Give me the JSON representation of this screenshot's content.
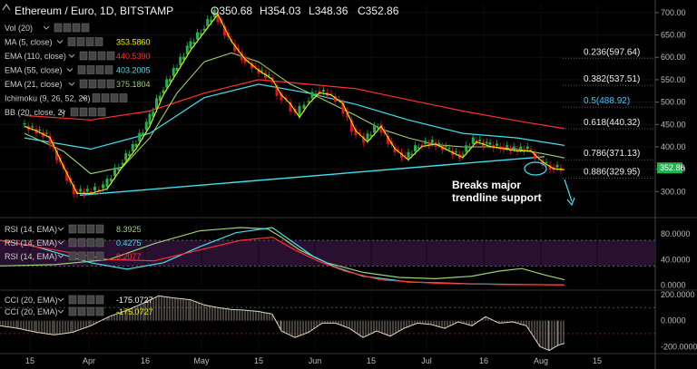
{
  "header": {
    "title": "Ethereum / Euro, 1D, BITSTAMP",
    "o_label": "O",
    "o": "350.68",
    "h_label": "H",
    "h": "354.03",
    "l_label": "L",
    "l": "348.36",
    "c_label": "C",
    "c": "352.86"
  },
  "legend": [
    {
      "label": "Vol (20)",
      "value": "",
      "color": "#cccccc"
    },
    {
      "label": "MA (5, close)",
      "value": "353.5860",
      "color": "#f0f000"
    },
    {
      "label": "EMA (110, close)",
      "value": "440.5390",
      "color": "#ff3030"
    },
    {
      "label": "EMA (55, close)",
      "value": "403.2005",
      "color": "#40e0f0"
    },
    {
      "label": "EMA (21, close)",
      "value": "375.1804",
      "color": "#9cd070"
    },
    {
      "label": "Ichimoku (9, 26, 52, 26)",
      "value": "",
      "color": "#cccccc"
    },
    {
      "label": "BB (20, close, 2)",
      "value": "",
      "color": "#cccccc"
    }
  ],
  "fib_levels": [
    {
      "label": "0.236(597.64)",
      "value": 597.64,
      "color": "#eeeeee"
    },
    {
      "label": "0.382(537.51)",
      "value": 537.51,
      "color": "#eeeeee"
    },
    {
      "label": "0.5(488.92)",
      "value": 488.92,
      "color": "#40c8ff"
    },
    {
      "label": "0.618(440.32)",
      "value": 440.32,
      "color": "#eeeeee"
    },
    {
      "label": "0.786(371.13)",
      "value": 371.13,
      "color": "#eeeeee"
    },
    {
      "label": "0.886(329.95)",
      "value": 329.95,
      "color": "#eeeeee"
    }
  ],
  "annotation": {
    "line1": "Breaks major",
    "line2": "trendline support"
  },
  "price_tag": {
    "value": "352.86",
    "num": 352.86,
    "color": "#22b24c"
  },
  "rsi_legend": [
    {
      "label": "RSI (14, EMA)",
      "value": "8.3925",
      "color": "#9cd070"
    },
    {
      "label": "RSI (14, EMA)",
      "value": "0.4275",
      "color": "#40e0f0"
    },
    {
      "label": "RSI (14, EMA)",
      "value": "0.2077",
      "color": "#ff3030"
    }
  ],
  "cci_legend": [
    {
      "label": "CCI (20, EMA)",
      "value": "-175.0727",
      "color": "#ffffff"
    },
    {
      "label": "CCI (20, EMA)",
      "value": "-175.0727",
      "color": "#f0f000"
    }
  ],
  "colors": {
    "up": "#22b24c",
    "down": "#e0141e",
    "trend": "#40e0f0"
  },
  "chart_data": {
    "type": "line",
    "title": "Ethereum / Euro, 1D, BITSTAMP",
    "price_axis": {
      "min": 250,
      "max": 720,
      "ticks": [
        300,
        350,
        400,
        450,
        500,
        550,
        600,
        650,
        700
      ]
    },
    "price_tick_labels": [
      "300.00",
      "350.00",
      "400.00",
      "450.00",
      "500.00",
      "550.00",
      "600.00",
      "650.00",
      "700.00"
    ],
    "x_tick_labels": [
      "15",
      "Apr",
      "16",
      "May",
      "15",
      "Jun",
      "15",
      "Jul",
      "16",
      "Aug",
      "15"
    ],
    "x_ticks": [
      33,
      98,
      160,
      222,
      285,
      347,
      409,
      470,
      533,
      596,
      658
    ],
    "price_path": [
      [
        27,
        450
      ],
      [
        40,
        440
      ],
      [
        55,
        425
      ],
      [
        70,
        360
      ],
      [
        85,
        300
      ],
      [
        100,
        300
      ],
      [
        118,
        310
      ],
      [
        135,
        360
      ],
      [
        150,
        400
      ],
      [
        165,
        450
      ],
      [
        180,
        520
      ],
      [
        195,
        570
      ],
      [
        210,
        620
      ],
      [
        225,
        660
      ],
      [
        240,
        700
      ],
      [
        255,
        640
      ],
      [
        270,
        600
      ],
      [
        285,
        575
      ],
      [
        300,
        555
      ],
      [
        310,
        520
      ],
      [
        320,
        500
      ],
      [
        330,
        470
      ],
      [
        340,
        500
      ],
      [
        352,
        525
      ],
      [
        365,
        520
      ],
      [
        378,
        500
      ],
      [
        392,
        440
      ],
      [
        405,
        415
      ],
      [
        420,
        450
      ],
      [
        435,
        400
      ],
      [
        450,
        375
      ],
      [
        465,
        405
      ],
      [
        480,
        410
      ],
      [
        495,
        395
      ],
      [
        510,
        380
      ],
      [
        525,
        415
      ],
      [
        540,
        405
      ],
      [
        555,
        400
      ],
      [
        570,
        395
      ],
      [
        585,
        395
      ],
      [
        598,
        370
      ],
      [
        610,
        355
      ],
      [
        622,
        352.86
      ]
    ],
    "ema21": [
      [
        27,
        430
      ],
      [
        70,
        390
      ],
      [
        100,
        340
      ],
      [
        135,
        355
      ],
      [
        165,
        420
      ],
      [
        195,
        520
      ],
      [
        225,
        590
      ],
      [
        255,
        610
      ],
      [
        285,
        590
      ],
      [
        320,
        540
      ],
      [
        352,
        510
      ],
      [
        392,
        470
      ],
      [
        420,
        440
      ],
      [
        450,
        420
      ],
      [
        480,
        405
      ],
      [
        510,
        400
      ],
      [
        540,
        400
      ],
      [
        570,
        395
      ],
      [
        598,
        385
      ],
      [
        622,
        375.18
      ]
    ],
    "ema55": [
      [
        27,
        420
      ],
      [
        100,
        395
      ],
      [
        165,
        430
      ],
      [
        225,
        510
      ],
      [
        285,
        540
      ],
      [
        340,
        520
      ],
      [
        392,
        495
      ],
      [
        450,
        460
      ],
      [
        510,
        430
      ],
      [
        570,
        420
      ],
      [
        622,
        403.2
      ]
    ],
    "ema110": [
      [
        27,
        470
      ],
      [
        100,
        460
      ],
      [
        165,
        480
      ],
      [
        225,
        520
      ],
      [
        285,
        550
      ],
      [
        340,
        540
      ],
      [
        392,
        530
      ],
      [
        450,
        505
      ],
      [
        510,
        480
      ],
      [
        570,
        458
      ],
      [
        622,
        440.54
      ]
    ],
    "trendline": [
      [
        88,
        292
      ],
      [
        600,
        378
      ]
    ],
    "rsi_axis": {
      "min": -5,
      "max": 100,
      "ticks": [
        0,
        40,
        80
      ],
      "tick_labels": [
        "0.0000",
        "40.0000",
        "80.0000"
      ],
      "band": [
        30,
        70
      ]
    },
    "rsi1": [
      [
        0,
        30
      ],
      [
        60,
        32
      ],
      [
        120,
        40
      ],
      [
        170,
        65
      ],
      [
        220,
        85
      ],
      [
        265,
        90
      ],
      [
        295,
        88
      ],
      [
        310,
        75
      ],
      [
        330,
        55
      ],
      [
        360,
        35
      ],
      [
        400,
        20
      ],
      [
        440,
        12
      ],
      [
        480,
        10
      ],
      [
        520,
        14
      ],
      [
        550,
        22
      ],
      [
        575,
        26
      ],
      [
        600,
        16
      ],
      [
        622,
        8.39
      ]
    ],
    "rsi2": [
      [
        0,
        70
      ],
      [
        40,
        60
      ],
      [
        100,
        35
      ],
      [
        140,
        25
      ],
      [
        180,
        35
      ],
      [
        220,
        60
      ],
      [
        260,
        82
      ],
      [
        300,
        90
      ],
      [
        320,
        70
      ],
      [
        345,
        45
      ],
      [
        370,
        28
      ],
      [
        400,
        14
      ],
      [
        450,
        5
      ],
      [
        520,
        2
      ],
      [
        580,
        1
      ],
      [
        622,
        0.43
      ]
    ],
    "rsi3": [
      [
        0,
        70
      ],
      [
        60,
        55
      ],
      [
        120,
        40
      ],
      [
        170,
        38
      ],
      [
        220,
        55
      ],
      [
        265,
        70
      ],
      [
        300,
        75
      ],
      [
        325,
        55
      ],
      [
        350,
        38
      ],
      [
        380,
        22
      ],
      [
        420,
        8
      ],
      [
        480,
        3
      ],
      [
        550,
        1
      ],
      [
        622,
        0.21
      ]
    ],
    "cci_axis": {
      "min": -240,
      "max": 220,
      "ticks": [
        -200,
        0,
        200
      ],
      "tick_labels": [
        "-200.0000",
        "0.0000",
        "200.0000"
      ],
      "band": [
        -100,
        100
      ]
    },
    "cci_hist": [
      [
        0,
        -40
      ],
      [
        20,
        -60
      ],
      [
        40,
        -90
      ],
      [
        60,
        -110
      ],
      [
        80,
        -90
      ],
      [
        100,
        -40
      ],
      [
        120,
        30
      ],
      [
        140,
        80
      ],
      [
        160,
        140
      ],
      [
        175,
        190
      ],
      [
        190,
        175
      ],
      [
        210,
        160
      ],
      [
        225,
        120
      ],
      [
        240,
        100
      ],
      [
        255,
        85
      ],
      [
        270,
        80
      ],
      [
        285,
        70
      ],
      [
        300,
        50
      ],
      [
        310,
        -80
      ],
      [
        325,
        -130
      ],
      [
        340,
        -90
      ],
      [
        355,
        -20
      ],
      [
        370,
        -20
      ],
      [
        385,
        -60
      ],
      [
        400,
        -130
      ],
      [
        415,
        -80
      ],
      [
        430,
        -120
      ],
      [
        445,
        -60
      ],
      [
        460,
        -20
      ],
      [
        475,
        -30
      ],
      [
        490,
        -60
      ],
      [
        505,
        -10
      ],
      [
        520,
        -40
      ],
      [
        535,
        30
      ],
      [
        550,
        -20
      ],
      [
        565,
        -10
      ],
      [
        580,
        -40
      ],
      [
        595,
        -200
      ],
      [
        605,
        -230
      ],
      [
        615,
        -190
      ],
      [
        622,
        -175
      ]
    ]
  }
}
